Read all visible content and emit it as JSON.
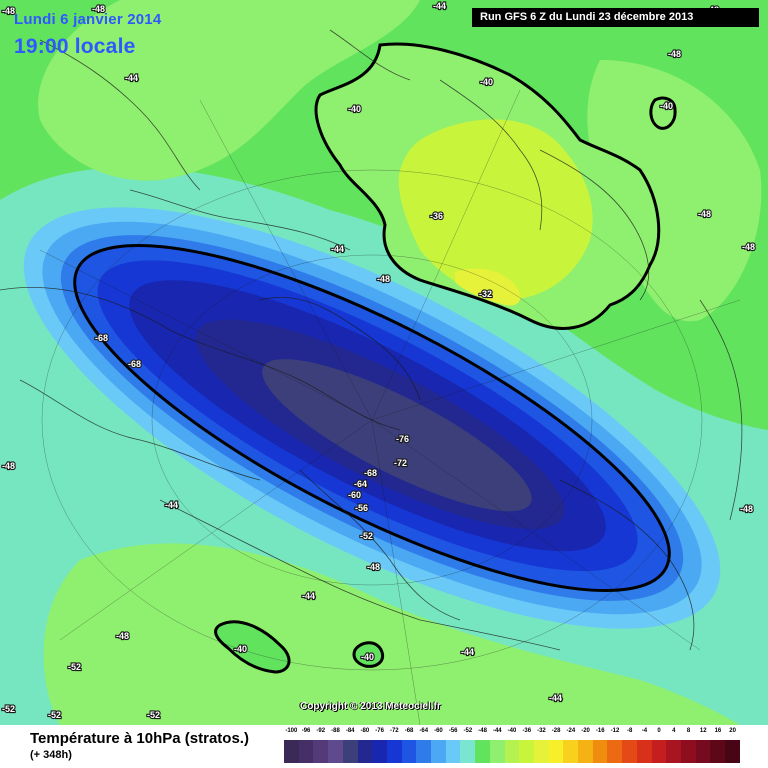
{
  "map": {
    "valid_date": "Lundi 6 janvier 2014",
    "valid_time": "19:00 locale",
    "run_info": "Run GFS 6 Z du Lundi 23 décembre 2013",
    "copyright": "Copyright © 2013 Meteociel.fr",
    "colors": {
      "background": "#7ae6d2",
      "band_48": "#61e35e",
      "band_44": "#8fef6f",
      "band_36": "#c9f43c",
      "band_32": "#e6f23a",
      "vortex_outer": "#6bc9f7",
      "vortex_52": "#4aa9f2",
      "vortex_56": "#2f7bea",
      "vortex_60": "#1e56e3",
      "vortex_64": "#1637d4",
      "vortex_68": "#1826b0",
      "vortex_72": "#222890",
      "vortex_76": "#3c3f7a",
      "coast": "#1a1a1a"
    },
    "temperature_labels": [
      {
        "text": "-48"
      },
      {
        "text": "-44"
      },
      {
        "text": "-40"
      },
      {
        "text": "-48"
      },
      {
        "text": "-44"
      },
      {
        "text": "-40"
      },
      {
        "text": "-40"
      },
      {
        "text": "-48"
      },
      {
        "text": "-36"
      },
      {
        "text": "-48"
      },
      {
        "text": "-44"
      },
      {
        "text": "-48"
      },
      {
        "text": "-32"
      },
      {
        "text": "-68"
      },
      {
        "text": "-68"
      },
      {
        "text": "-76"
      },
      {
        "text": "-72"
      },
      {
        "text": "-68"
      },
      {
        "text": "-64"
      },
      {
        "text": "-60"
      },
      {
        "text": "-56"
      },
      {
        "text": "-52"
      },
      {
        "text": "-48"
      },
      {
        "text": "-48"
      },
      {
        "text": "-44"
      },
      {
        "text": "-48"
      },
      {
        "text": "-44"
      },
      {
        "text": "-48"
      },
      {
        "text": "-40"
      },
      {
        "text": "-40"
      },
      {
        "text": "-44"
      },
      {
        "text": "-52"
      },
      {
        "text": "-52"
      },
      {
        "text": "-52"
      },
      {
        "text": "-52"
      },
      {
        "text": "-44"
      },
      {
        "text": "-48"
      },
      {
        "text": "-48"
      }
    ]
  },
  "legend": {
    "title": "Température à 10hPa (stratos.)",
    "lead_time": "(+ 348h)",
    "scale_labels": [
      "-100",
      "-96",
      "-92",
      "-88",
      "-84",
      "-80",
      "-76",
      "-72",
      "-68",
      "-64",
      "-60",
      "-56",
      "-52",
      "-48",
      "-44",
      "-40",
      "-36",
      "-32",
      "-28",
      "-24",
      "-20",
      "-16",
      "-12",
      "-8",
      "-4",
      "0",
      "4",
      "8",
      "12",
      "16",
      "20"
    ],
    "scale_colors": [
      "#3a2a55",
      "#452f66",
      "#553a7a",
      "#5f4a8e",
      "#3c3f7a",
      "#222890",
      "#1826b0",
      "#1637d4",
      "#1e56e3",
      "#2f7bea",
      "#4aa9f2",
      "#6bc9f7",
      "#7ae6d2",
      "#61e35e",
      "#8fef6f",
      "#b3f24f",
      "#c9f43c",
      "#e6f23a",
      "#f6ef2a",
      "#f7d11e",
      "#f5b214",
      "#f08d0f",
      "#ec6a12",
      "#e44a16",
      "#d9301a",
      "#c41e1e",
      "#a8141f",
      "#8e0d1f",
      "#760a1e",
      "#5e0719",
      "#470515"
    ]
  }
}
